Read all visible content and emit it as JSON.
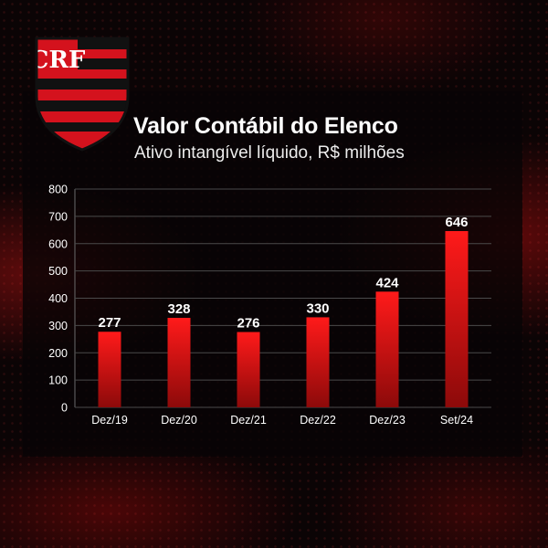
{
  "header": {
    "title": "Valor Contábil do Elenco",
    "subtitle": "Ativo intangível líquido, R$ milhões"
  },
  "logo": {
    "monogram": "CRF"
  },
  "chart_data": {
    "type": "bar",
    "title": "Valor Contábil do Elenco",
    "subtitle": "Ativo intangível líquido, R$ milhões",
    "xlabel": "",
    "ylabel": "",
    "categories": [
      "Dez/19",
      "Dez/20",
      "Dez/21",
      "Dez/22",
      "Dez/23",
      "Set/24"
    ],
    "values": [
      277,
      328,
      276,
      330,
      424,
      646
    ],
    "data_labels": [
      "277",
      "328",
      "276",
      "330",
      "424",
      "646"
    ],
    "ylim": [
      0,
      800
    ],
    "yticks": [
      0,
      100,
      200,
      300,
      400,
      500,
      600,
      700,
      800
    ],
    "grid": true,
    "legend": "none",
    "colors": {
      "bar_top": "#ff1a1a",
      "bar_bottom": "#8c0a0a",
      "grid": "#4a4a4a",
      "text": "#ffffff"
    }
  }
}
